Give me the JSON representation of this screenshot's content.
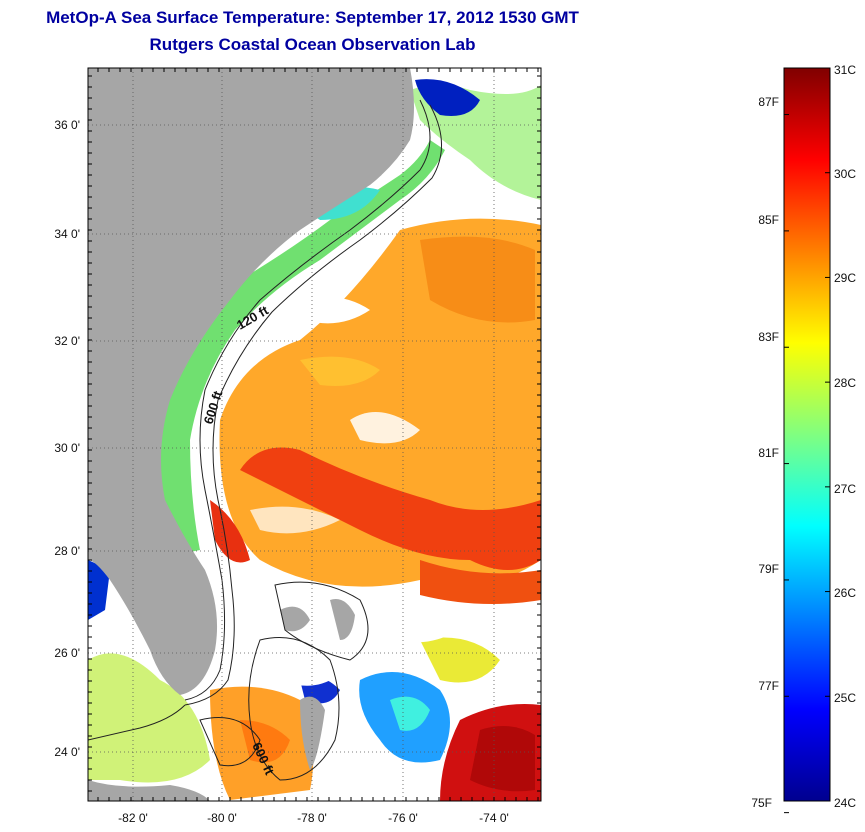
{
  "title": {
    "line1": "MetOp-A Sea Surface Temperature:  September 17, 2012 1530 GMT",
    "line2": "Rutgers Coastal Ocean Observation Lab"
  },
  "map": {
    "lat_ticks": [
      {
        "lat": 36,
        "label": "36 0'"
      },
      {
        "lat": 34,
        "label": "34 0'"
      },
      {
        "lat": 32,
        "label": "32 0'"
      },
      {
        "lat": 30,
        "label": "30 0'"
      },
      {
        "lat": 28,
        "label": "28 0'"
      },
      {
        "lat": 26,
        "label": "26 0'"
      },
      {
        "lat": 24,
        "label": "24 0'"
      }
    ],
    "lon_ticks": [
      {
        "lon": -82,
        "label": "-82 0'"
      },
      {
        "lon": -80,
        "label": "-80 0'"
      },
      {
        "lon": -78,
        "label": "-78 0'"
      },
      {
        "lon": -76,
        "label": "-76 0'"
      },
      {
        "lon": -74,
        "label": "-74 0'"
      }
    ],
    "lon_range": [
      -83,
      -73
    ],
    "lat_range": [
      23,
      37
    ],
    "contour_labels": [
      "120 ft",
      "600 ft",
      "600 ft"
    ],
    "land_color": "#a6a6a6"
  },
  "colorbar": {
    "celsius": [
      "31C",
      "30C",
      "29C",
      "28C",
      "27C",
      "26C",
      "25C",
      "24C"
    ],
    "fahrenheit": [
      "87F",
      "85F",
      "83F",
      "81F",
      "79F",
      "77F",
      "75F"
    ],
    "celsius_range": [
      24,
      31
    ],
    "colormap": "jet"
  }
}
